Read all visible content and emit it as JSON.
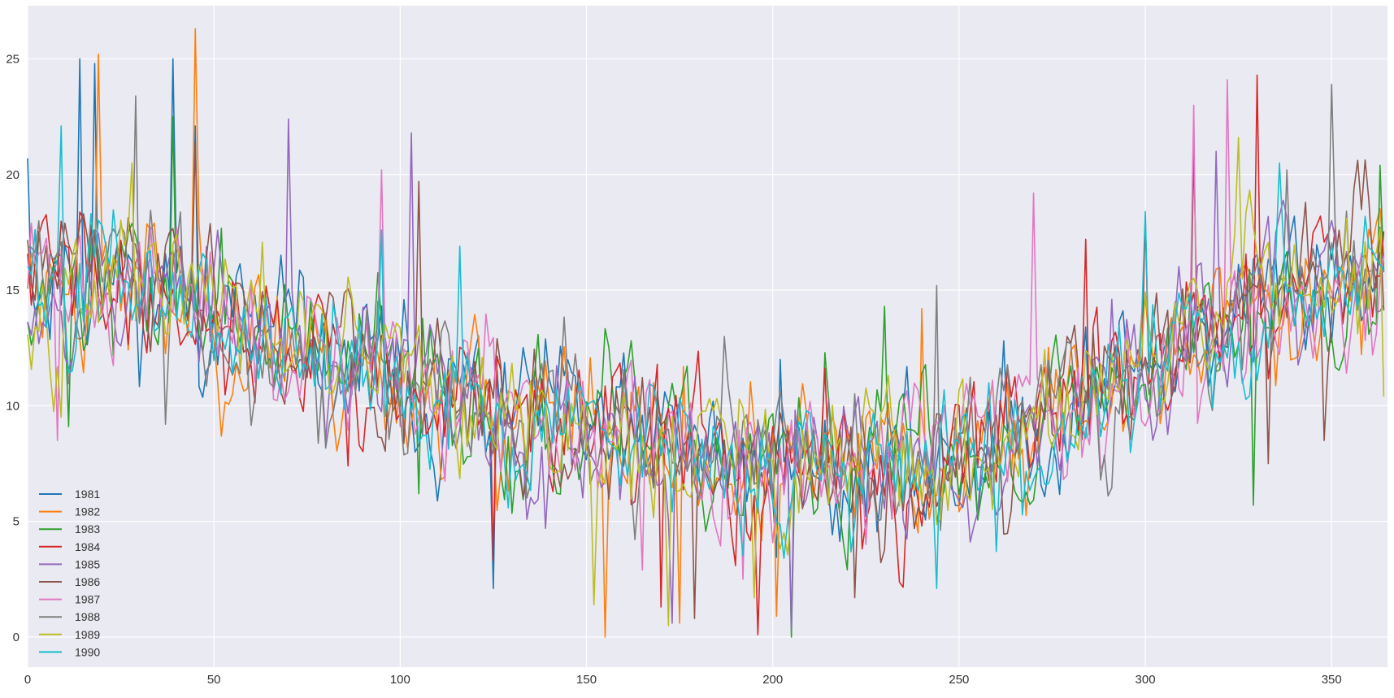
{
  "chart_data": {
    "type": "line",
    "title": "",
    "xlabel": "",
    "ylabel": "",
    "xlim": [
      0,
      365
    ],
    "ylim": [
      -1.3,
      27.3
    ],
    "x_ticks": [
      0,
      50,
      100,
      150,
      200,
      250,
      300,
      350
    ],
    "y_ticks": [
      0,
      5,
      10,
      15,
      20,
      25
    ],
    "grid": true,
    "legend": {
      "position": "bottom-left",
      "frame": false
    },
    "style": {
      "background": "#eaeaf2",
      "grid_color": "#ffffff"
    },
    "x": "day index 0–364 (one value per day)",
    "series": [
      {
        "name": "1981",
        "color": "#1f77b4",
        "noise": 2.6,
        "seed": 11,
        "peaks": [
          [
            0,
            20.7
          ],
          [
            14,
            25
          ],
          [
            18,
            24.8
          ],
          [
            39,
            25
          ],
          [
            45,
            22.1
          ],
          [
            125,
            2.1
          ],
          [
            202,
            12
          ]
        ]
      },
      {
        "name": "1982",
        "color": "#ff7f0e",
        "noise": 2.7,
        "seed": 23,
        "peaks": [
          [
            19,
            25.2
          ],
          [
            45,
            26.3
          ],
          [
            155,
            0
          ],
          [
            175,
            0.6
          ],
          [
            201,
            0.9
          ],
          [
            240,
            14.2
          ]
        ]
      },
      {
        "name": "1983",
        "color": "#2ca02c",
        "noise": 2.6,
        "seed": 37,
        "peaks": [
          [
            11,
            9.1
          ],
          [
            39,
            22.5
          ],
          [
            105,
            6.2
          ],
          [
            205,
            0
          ],
          [
            214,
            12.3
          ],
          [
            230,
            14.3
          ],
          [
            329,
            5.7
          ],
          [
            363,
            20.4
          ]
        ]
      },
      {
        "name": "1984",
        "color": "#d62728",
        "noise": 2.6,
        "seed": 41,
        "peaks": [
          [
            86,
            7.4
          ],
          [
            125,
            3.3
          ],
          [
            170,
            1.3
          ],
          [
            196,
            0.1
          ],
          [
            284,
            17.2
          ],
          [
            300,
            18.2
          ],
          [
            330,
            24.3
          ]
        ]
      },
      {
        "name": "1985",
        "color": "#9467bd",
        "noise": 2.6,
        "seed": 53,
        "peaks": [
          [
            70,
            22.4
          ],
          [
            103,
            21.8
          ],
          [
            139,
            4.7
          ],
          [
            173,
            0.6
          ],
          [
            205,
            0.3
          ],
          [
            319,
            21
          ]
        ]
      },
      {
        "name": "1986",
        "color": "#8c564b",
        "noise": 2.6,
        "seed": 61,
        "peaks": [
          [
            45,
            21.4
          ],
          [
            105,
            19.7
          ],
          [
            179,
            0.8
          ],
          [
            222,
            1.7
          ],
          [
            313,
            21
          ],
          [
            333,
            7.5
          ],
          [
            348,
            8.5
          ]
        ]
      },
      {
        "name": "1987",
        "color": "#e377c2",
        "noise": 2.6,
        "seed": 71,
        "peaks": [
          [
            8,
            8.5
          ],
          [
            95,
            20.2
          ],
          [
            165,
            2.9
          ],
          [
            192,
            2.5
          ],
          [
            270,
            19.2
          ],
          [
            313,
            23
          ],
          [
            322,
            24.1
          ]
        ]
      },
      {
        "name": "1988",
        "color": "#7f7f7f",
        "noise": 2.6,
        "seed": 83,
        "peaks": [
          [
            29,
            23.4
          ],
          [
            37,
            9.2
          ],
          [
            187,
            13
          ],
          [
            244,
            15.2
          ],
          [
            338,
            20.2
          ],
          [
            350,
            23.9
          ]
        ]
      },
      {
        "name": "1989",
        "color": "#bcbd22",
        "noise": 2.6,
        "seed": 97,
        "peaks": [
          [
            9,
            9.5
          ],
          [
            28,
            20.5
          ],
          [
            152,
            1.4
          ],
          [
            172,
            0.5
          ],
          [
            195,
            1.7
          ],
          [
            325,
            21.6
          ],
          [
            364,
            10.4
          ]
        ]
      },
      {
        "name": "1990",
        "color": "#17becf",
        "noise": 2.6,
        "seed": 101,
        "peaks": [
          [
            9,
            22.1
          ],
          [
            95,
            17.6
          ],
          [
            116,
            16.9
          ],
          [
            244,
            2.1
          ],
          [
            260,
            3.7
          ],
          [
            300,
            18.4
          ],
          [
            336,
            20.5
          ]
        ]
      }
    ]
  }
}
